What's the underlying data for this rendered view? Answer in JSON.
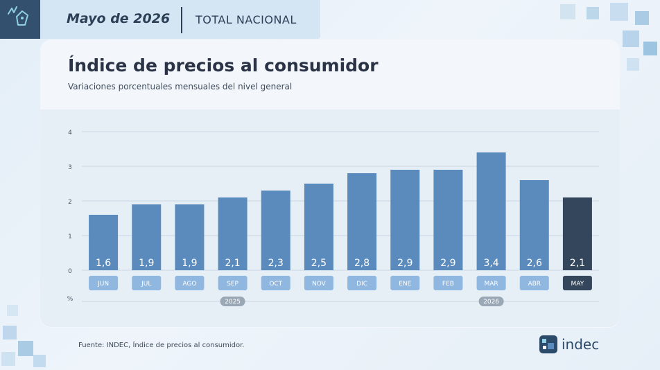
{
  "header": {
    "date": "Mayo de 2026",
    "region": "TOTAL NACIONAL"
  },
  "colors": {
    "bar": "#5b8bbd",
    "bar_highlight": "#33465c",
    "month_pill": "#8fb7df",
    "month_pill_highlight": "#33465c",
    "year_pill": "#9aa7b5"
  },
  "chart_data": {
    "type": "bar",
    "title": "Índice de precios al consumidor",
    "subtitle": "Variaciones porcentuales mensuales del nivel general",
    "ylabel": "%",
    "ylim": [
      0,
      4
    ],
    "yticks": [
      "4",
      "3",
      "2",
      "1",
      "0"
    ],
    "grid": true,
    "categories": [
      "JUN",
      "JUL",
      "AGO",
      "SEP",
      "OCT",
      "NOV",
      "DIC",
      "ENE",
      "FEB",
      "MAR",
      "ABR",
      "MAY"
    ],
    "values": [
      1.6,
      1.9,
      1.9,
      2.1,
      2.3,
      2.5,
      2.8,
      2.9,
      2.9,
      3.4,
      2.6,
      2.1
    ],
    "value_labels": [
      "1,6",
      "1,9",
      "1,9",
      "2,1",
      "2,3",
      "2,5",
      "2,8",
      "2,9",
      "2,9",
      "3,4",
      "2,6",
      "2,1"
    ],
    "highlight_index": 11,
    "years": [
      {
        "label": "2025",
        "from": 0,
        "to": 6
      },
      {
        "label": "2026",
        "from": 7,
        "to": 11
      }
    ]
  },
  "footer": {
    "source": "Fuente: INDEC, Índice de precios al consumidor.",
    "brand": "indec"
  }
}
